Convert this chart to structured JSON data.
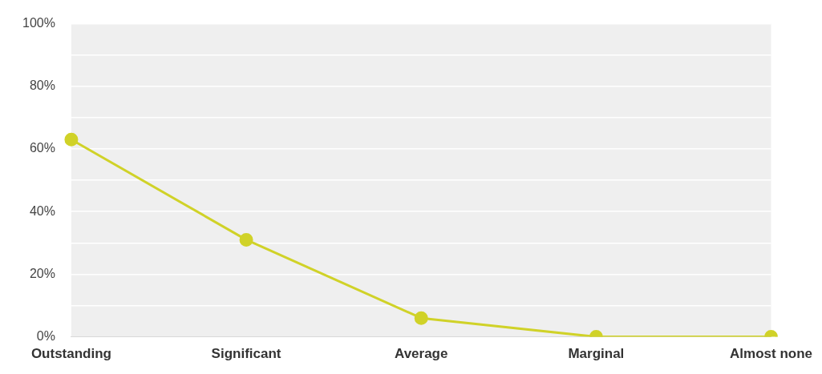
{
  "chart_data": {
    "type": "line",
    "categories": [
      "Outstanding",
      "Significant",
      "Average",
      "Marginal",
      "Almost none"
    ],
    "series": [
      {
        "color": "#d0d228",
        "values": [
          63,
          31,
          6,
          0,
          0
        ]
      }
    ],
    "ylim": [
      0,
      100
    ],
    "yticks": [
      {
        "value": 0,
        "label": "0%"
      },
      {
        "value": 10,
        "label": null
      },
      {
        "value": 20,
        "label": "20%"
      },
      {
        "value": 30,
        "label": null
      },
      {
        "value": 40,
        "label": "40%"
      },
      {
        "value": 50,
        "label": null
      },
      {
        "value": 60,
        "label": "60%"
      },
      {
        "value": 70,
        "label": null
      },
      {
        "value": 80,
        "label": "80%"
      },
      {
        "value": 90,
        "label": null
      },
      {
        "value": 100,
        "label": "100%"
      }
    ],
    "grid": "y",
    "legend": false,
    "marker": "circle",
    "line_style": "solid"
  }
}
